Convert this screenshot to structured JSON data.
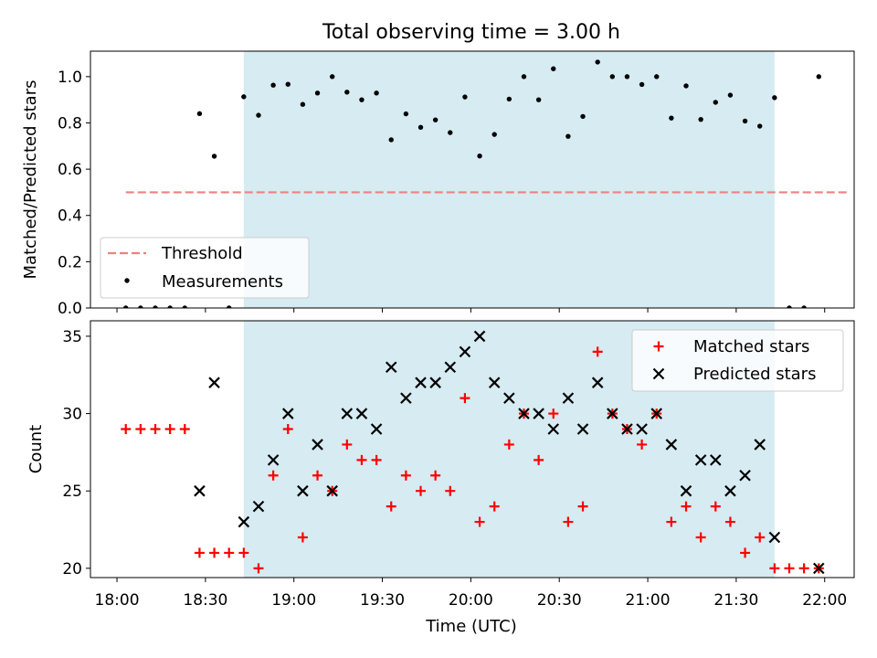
{
  "chart_data": {
    "title": "Total observing time = 3.00 h",
    "xlabel": "Time (UTC)",
    "x_ticks": [
      "18:00",
      "18:30",
      "19:00",
      "19:30",
      "20:00",
      "20:30",
      "21:00",
      "21:30",
      "22:00"
    ],
    "xlim_minutes": [
      -9,
      250
    ],
    "span_minutes": [
      43,
      223
    ],
    "span_color": "#add8e6",
    "panels": [
      {
        "type": "scatter",
        "ylabel": "Matched/Predicted stars",
        "ylim": [
          0,
          1.11
        ],
        "y_ticks": [
          "0.0",
          "0.2",
          "0.4",
          "0.6",
          "0.8",
          "1.0"
        ],
        "legend_position": "lower-left",
        "threshold": {
          "name": "Threshold",
          "value": 0.5,
          "x_range": [
            3,
            248
          ],
          "color": "#f08080"
        },
        "series": [
          {
            "name": "Measurements",
            "color": "#000000",
            "x": [
              3,
              8,
              13,
              18,
              23,
              28,
              33,
              38,
              43,
              48,
              53,
              58,
              63,
              68,
              73,
              78,
              83,
              88,
              93,
              98,
              103,
              108,
              113,
              118,
              123,
              128,
              133,
              138,
              143,
              148,
              153,
              158,
              163,
              168,
              173,
              178,
              183,
              188,
              193,
              198,
              203,
              208,
              213,
              218,
              223,
              228,
              233,
              238
            ],
            "y": [
              0,
              0,
              0,
              0,
              0,
              0.84,
              0.656,
              0,
              0.913,
              0.833,
              0.963,
              0.967,
              0.88,
              0.929,
              1.0,
              0.933,
              0.9,
              0.929,
              0.727,
              0.839,
              0.781,
              0.813,
              0.758,
              0.912,
              0.657,
              0.75,
              0.903,
              1.0,
              0.9,
              1.034,
              0.742,
              0.828,
              1.063,
              1.0,
              1.0,
              0.966,
              1.0,
              0.821,
              0.96,
              0.815,
              0.889,
              0.92,
              0.808,
              0.786,
              0.909,
              0,
              0,
              1.0
            ]
          }
        ]
      },
      {
        "type": "scatter",
        "ylabel": "Count",
        "ylim": [
          19.4,
          36.0
        ],
        "y_ticks": [
          "20",
          "25",
          "30",
          "35"
        ],
        "legend_position": "upper-right",
        "series": [
          {
            "name": "Matched stars",
            "marker": "+",
            "color": "#ff0000",
            "x": [
              3,
              8,
              13,
              18,
              23,
              28,
              33,
              38,
              43,
              48,
              53,
              58,
              63,
              68,
              73,
              78,
              83,
              88,
              93,
              98,
              103,
              108,
              113,
              118,
              123,
              128,
              133,
              138,
              143,
              148,
              153,
              158,
              163,
              168,
              173,
              178,
              183,
              188,
              193,
              198,
              203,
              208,
              213,
              218,
              223,
              228,
              233,
              238
            ],
            "y": [
              29,
              29,
              29,
              29,
              29,
              21,
              21,
              21,
              21,
              20,
              26,
              29,
              22,
              26,
              25,
              28,
              27,
              27,
              24,
              26,
              25,
              26,
              25,
              31,
              23,
              24,
              28,
              30,
              27,
              30,
              23,
              24,
              34,
              30,
              29,
              28,
              30,
              23,
              24,
              22,
              24,
              23,
              21,
              22,
              20,
              20,
              20,
              20
            ]
          },
          {
            "name": "Predicted stars",
            "marker": "x",
            "color": "#000000",
            "x": [
              28,
              33,
              43,
              48,
              53,
              58,
              63,
              68,
              73,
              78,
              83,
              88,
              93,
              98,
              103,
              108,
              113,
              118,
              123,
              128,
              133,
              138,
              143,
              148,
              153,
              158,
              163,
              168,
              173,
              178,
              183,
              188,
              193,
              198,
              203,
              208,
              213,
              218,
              223,
              238
            ],
            "y": [
              25,
              32,
              23,
              24,
              27,
              30,
              25,
              28,
              25,
              30,
              30,
              29,
              33,
              31,
              32,
              32,
              33,
              34,
              35,
              32,
              31,
              30,
              30,
              29,
              31,
              29,
              32,
              30,
              29,
              29,
              30,
              28,
              25,
              27,
              27,
              25,
              26,
              28,
              22,
              20
            ]
          }
        ]
      }
    ]
  }
}
